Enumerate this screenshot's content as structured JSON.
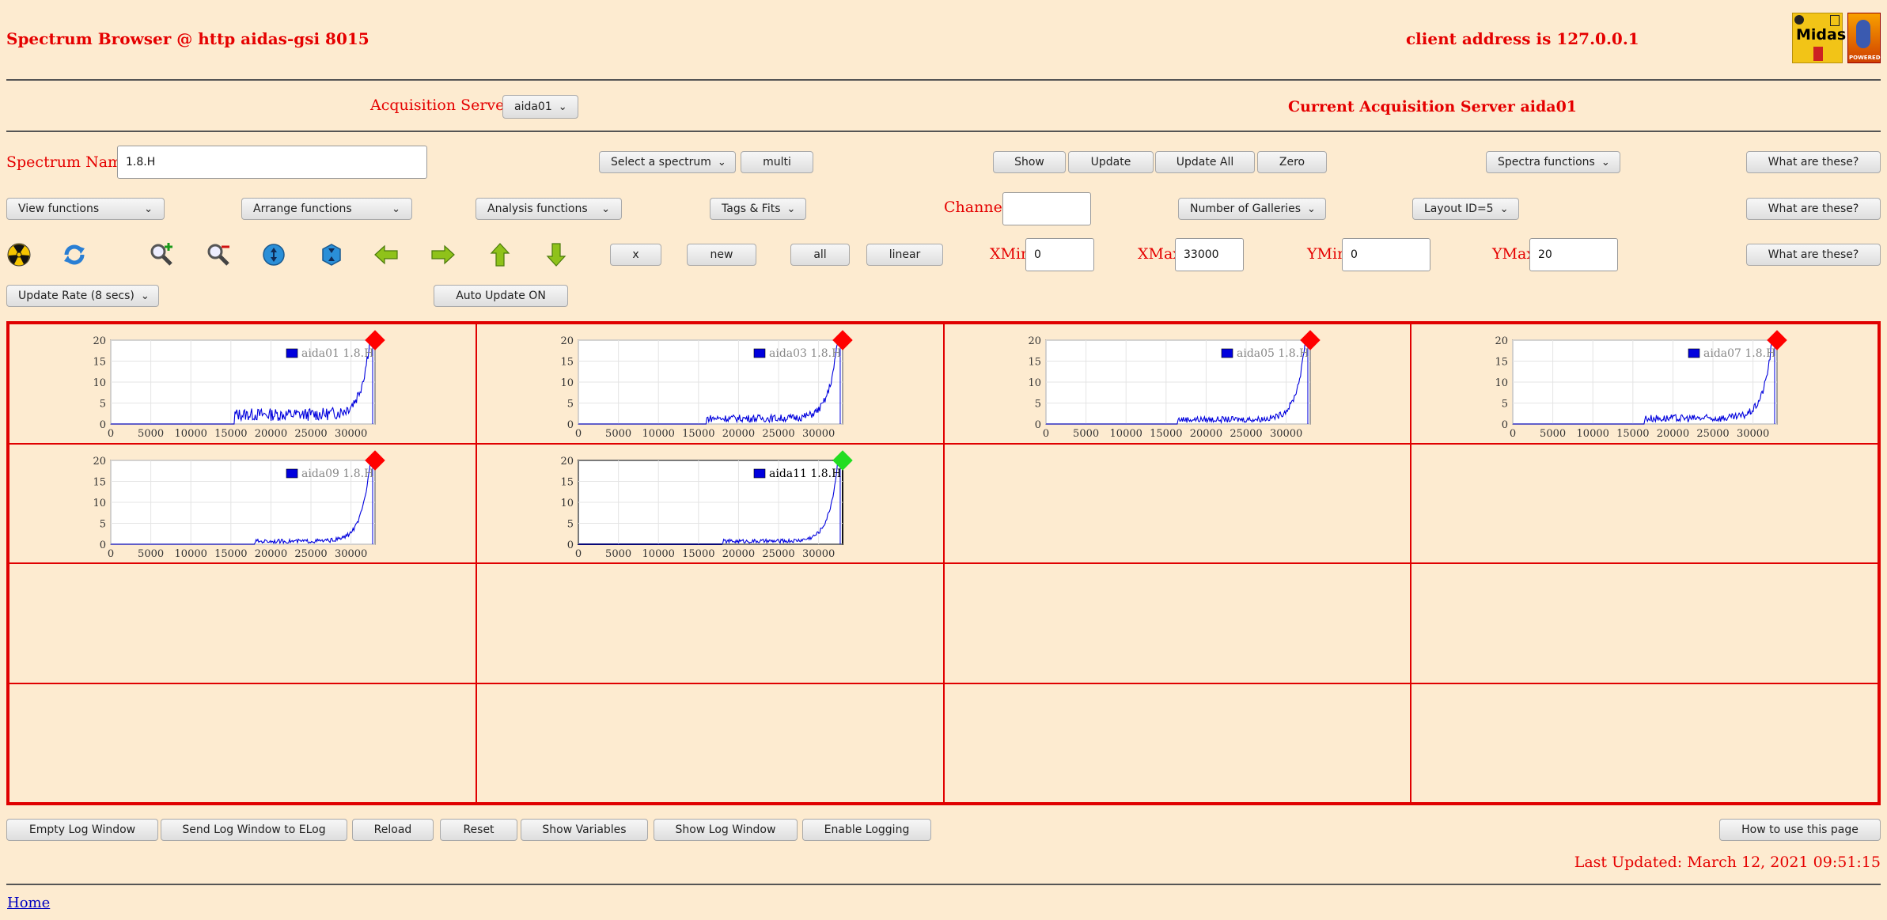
{
  "header": {
    "title": "Spectrum Browser @ http aidas-gsi 8015",
    "client_address": "client address is 127.0.0.1",
    "midas_logo_text": "Midas",
    "powered_text": "POWERED"
  },
  "acq": {
    "label": "Acquisition Servers",
    "selected": "aida01",
    "current": "Current Acquisition Server aida01"
  },
  "row1": {
    "spectrum_label": "Spectrum Name:",
    "spectrum_value": "1.8.H",
    "select_spectrum": "Select a spectrum",
    "multi": "multi",
    "show": "Show",
    "update": "Update",
    "update_all": "Update All",
    "zero": "Zero",
    "spectra_functions": "Spectra functions",
    "what": "What are these?"
  },
  "row2": {
    "view": "View functions",
    "arrange": "Arrange functions",
    "analysis": "Analysis functions",
    "tags": "Tags & Fits",
    "channel_label": "Channel:",
    "channel_value": "",
    "galleries": "Number of Galleries",
    "layout": "Layout ID=5",
    "what": "What are these?"
  },
  "row3": {
    "x": "x",
    "new": "new",
    "all": "all",
    "linear": "linear",
    "xmin_label": "XMin",
    "xmin": "0",
    "xmax_label": "XMax",
    "xmax": "33000",
    "ymin_label": "YMin",
    "ymin": "0",
    "ymax_label": "YMax",
    "ymax": "20",
    "what": "What are these?"
  },
  "row4": {
    "update_rate": "Update Rate (8 secs)",
    "auto_update": "Auto Update ON"
  },
  "icons": [
    "radiation-icon",
    "refresh-icon",
    "zoom-in-icon",
    "zoom-out-icon",
    "expand-vertical-icon",
    "compress-vertical-icon",
    "arrow-left-icon",
    "arrow-right-icon",
    "arrow-up-icon",
    "arrow-down-icon"
  ],
  "colors": {
    "accent": "#e50000",
    "series": "#0000dd",
    "marker_default": "#ff0000",
    "marker_selected": "#22dd22"
  },
  "chart_data": [
    {
      "type": "line",
      "legend": "aida01 1.8.H",
      "xlim": [
        0,
        33000
      ],
      "ylim": [
        0,
        20
      ],
      "xticks": [
        "0",
        "5000",
        "10000",
        "15000",
        "20000",
        "25000",
        "30000"
      ],
      "yticks": [
        "0",
        "5",
        "10",
        "15",
        "20"
      ],
      "marker": "red",
      "start": 15500,
      "base": 2.5,
      "selected": false
    },
    {
      "type": "line",
      "legend": "aida03 1.8.H",
      "xlim": [
        0,
        33000
      ],
      "ylim": [
        0,
        20
      ],
      "xticks": [
        "0",
        "5000",
        "10000",
        "15000",
        "20000",
        "25000",
        "30000"
      ],
      "yticks": [
        "0",
        "5",
        "10",
        "15",
        "20"
      ],
      "marker": "red",
      "start": 16000,
      "base": 1.5,
      "selected": false
    },
    {
      "type": "line",
      "legend": "aida05 1.8.H",
      "xlim": [
        0,
        33000
      ],
      "ylim": [
        0,
        20
      ],
      "xticks": [
        "0",
        "5000",
        "10000",
        "15000",
        "20000",
        "25000",
        "30000"
      ],
      "yticks": [
        "0",
        "5",
        "10",
        "15",
        "20"
      ],
      "marker": "red",
      "start": 16500,
      "base": 1.2,
      "selected": false
    },
    {
      "type": "line",
      "legend": "aida07 1.8.H",
      "xlim": [
        0,
        33000
      ],
      "ylim": [
        0,
        20
      ],
      "xticks": [
        "0",
        "5000",
        "10000",
        "15000",
        "20000",
        "25000",
        "30000"
      ],
      "yticks": [
        "0",
        "5",
        "10",
        "15",
        "20"
      ],
      "marker": "red",
      "start": 16500,
      "base": 1.5,
      "selected": false
    },
    {
      "type": "line",
      "legend": "aida09 1.8.H",
      "xlim": [
        0,
        33000
      ],
      "ylim": [
        0,
        20
      ],
      "xticks": [
        "0",
        "5000",
        "10000",
        "15000",
        "20000",
        "25000",
        "30000"
      ],
      "yticks": [
        "0",
        "5",
        "10",
        "15",
        "20"
      ],
      "marker": "red",
      "start": 18000,
      "base": 0.8,
      "selected": false
    },
    {
      "type": "line",
      "legend": "aida11 1.8.H",
      "xlim": [
        0,
        33000
      ],
      "ylim": [
        0,
        20
      ],
      "xticks": [
        "0",
        "5000",
        "10000",
        "15000",
        "20000",
        "25000",
        "30000"
      ],
      "yticks": [
        "0",
        "5",
        "10",
        "15",
        "20"
      ],
      "marker": "green",
      "start": 18000,
      "base": 0.8,
      "selected": true
    }
  ],
  "footer": {
    "empty_log": "Empty Log Window",
    "send_log": "Send Log Window to ELog",
    "reload": "Reload",
    "reset": "Reset",
    "show_vars": "Show Variables",
    "show_log": "Show Log Window",
    "enable_logging": "Enable Logging",
    "how_to": "How to use this page",
    "last_updated": "Last Updated: March 12, 2021 09:51:15",
    "home": "Home"
  }
}
